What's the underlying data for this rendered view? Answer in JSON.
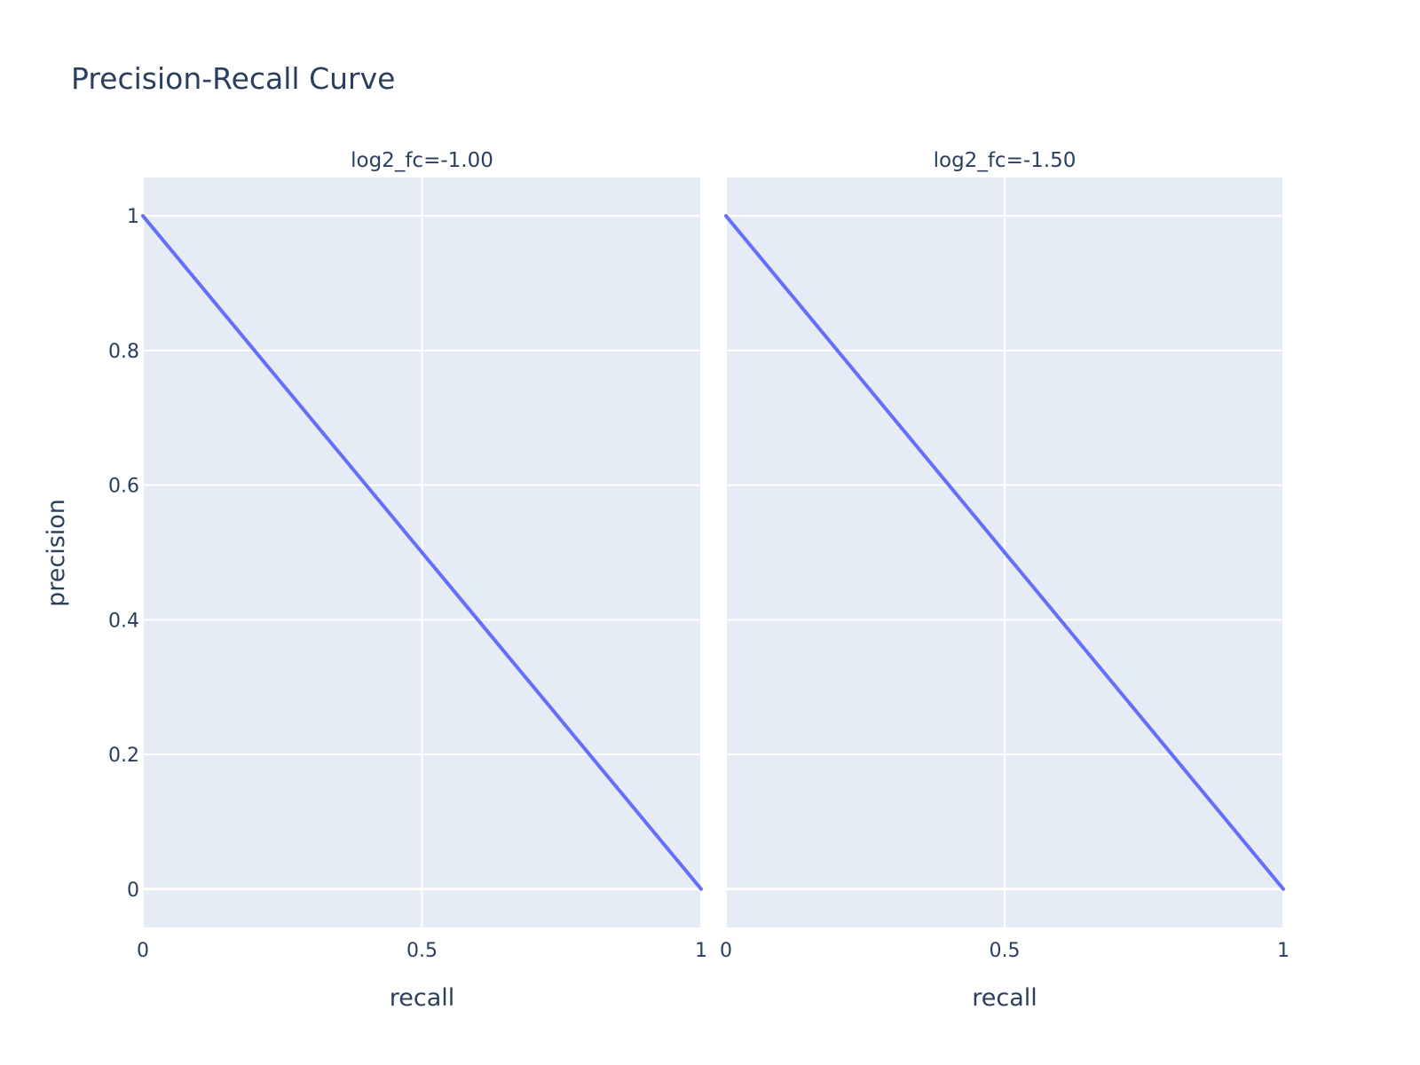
{
  "chart_data": {
    "type": "line",
    "title": "Precision-Recall Curve",
    "ylabel": "precision",
    "plot_bgcolor": "#e5ecf6",
    "grid_color": "#ffffff",
    "text_color": "#2a3f5f",
    "line_color": "#636efa",
    "grid": true,
    "xlim": [
      0,
      1
    ],
    "ylim": [
      -0.057,
      1.057
    ],
    "x_ticks": [
      0,
      0.5,
      1
    ],
    "x_tick_labels": [
      "0",
      "0.5",
      "1"
    ],
    "y_ticks": [
      0,
      0.2,
      0.4,
      0.6,
      0.8,
      1
    ],
    "y_tick_labels": [
      "0",
      "0.2",
      "0.4",
      "0.6",
      "0.8",
      "1"
    ],
    "subplots": [
      {
        "title": "log2_fc=-1.00",
        "xlabel": "recall",
        "x": [
          0,
          1
        ],
        "y": [
          1,
          0
        ]
      },
      {
        "title": "log2_fc=-1.50",
        "xlabel": "recall",
        "x": [
          0,
          1
        ],
        "y": [
          1,
          0
        ]
      }
    ]
  }
}
